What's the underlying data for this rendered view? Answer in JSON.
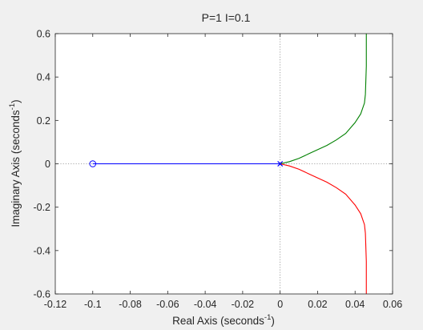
{
  "chart_data": {
    "type": "line",
    "title": "P=1 I=0.1",
    "xlabel": "Real Axis (seconds",
    "xlabel_sup": "-1",
    "xlabel_end": ")",
    "ylabel": "Imaginary Axis (seconds",
    "ylabel_sup": "-1",
    "ylabel_end": ")",
    "xlim": [
      -0.12,
      0.06
    ],
    "ylim": [
      -0.6,
      0.6
    ],
    "xticks": [
      -0.12,
      -0.1,
      -0.08,
      -0.06,
      -0.04,
      -0.02,
      0,
      0.02,
      0.04,
      0.06
    ],
    "xtick_labels": [
      "-0.12",
      "-0.1",
      "-0.08",
      "-0.06",
      "-0.04",
      "-0.02",
      "0",
      "0.02",
      "0.04",
      "0.06"
    ],
    "yticks": [
      -0.6,
      -0.4,
      -0.2,
      0,
      0.2,
      0.4,
      0.6
    ],
    "ytick_labels": [
      "-0.6",
      "-0.4",
      "-0.2",
      "0",
      "0.2",
      "0.4",
      "0.6"
    ],
    "grid": false,
    "reference_lines": [
      {
        "orientation": "horizontal",
        "value": 0
      },
      {
        "orientation": "vertical",
        "value": 0
      }
    ],
    "series": [
      {
        "color": "#0000ff",
        "x": [
          -0.1,
          0
        ],
        "y": [
          0,
          0
        ]
      },
      {
        "color": "#008000",
        "x": [
          0,
          0.005,
          0.01,
          0.015,
          0.02,
          0.025,
          0.03,
          0.035,
          0.04,
          0.043,
          0.045,
          0.0455,
          0.046,
          0.046
        ],
        "y": [
          0,
          0.01,
          0.025,
          0.045,
          0.065,
          0.085,
          0.11,
          0.14,
          0.19,
          0.23,
          0.28,
          0.32,
          0.45,
          0.6
        ]
      },
      {
        "color": "#ff0000",
        "x": [
          0,
          0.005,
          0.01,
          0.015,
          0.02,
          0.025,
          0.03,
          0.035,
          0.04,
          0.043,
          0.045,
          0.0455,
          0.046,
          0.046
        ],
        "y": [
          0,
          -0.01,
          -0.025,
          -0.045,
          -0.065,
          -0.085,
          -0.11,
          -0.14,
          -0.19,
          -0.23,
          -0.28,
          -0.32,
          -0.45,
          -0.6
        ]
      }
    ],
    "zeros": [
      {
        "x": -0.1,
        "y": 0
      }
    ],
    "poles": [
      {
        "x": 0,
        "y": 0
      },
      {
        "x": 0,
        "y": 0
      }
    ]
  }
}
